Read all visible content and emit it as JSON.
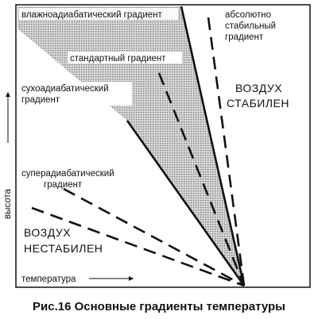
{
  "labels": {
    "wet_adiabatic": "влажноадиабатический градиент",
    "standard_1": "стандартный градиент",
    "dry_adiabatic_1": "сухоадиабатический",
    "dry_adiabatic_2": "градиент",
    "absolutely_stable_1": "абсолютно",
    "absolutely_stable_2": "стабильный",
    "absolutely_stable_3": "градиент",
    "superadiabatic_1": "супер­адиабатический",
    "superadiabatic_2": "градиент",
    "air_stable_1": "ВОЗДУХ",
    "air_stable_2": "СТАБИЛЕН",
    "air_unstable_1": "ВОЗДУХ",
    "air_unstable_2": "НЕСТАБИЛЕН"
  },
  "axes": {
    "x_label": "температура",
    "y_label": "высота"
  },
  "caption": "Рис.16 Основные градиенты температуры",
  "colors": {
    "line": "#111111",
    "shade": "#bdbdbd"
  }
}
